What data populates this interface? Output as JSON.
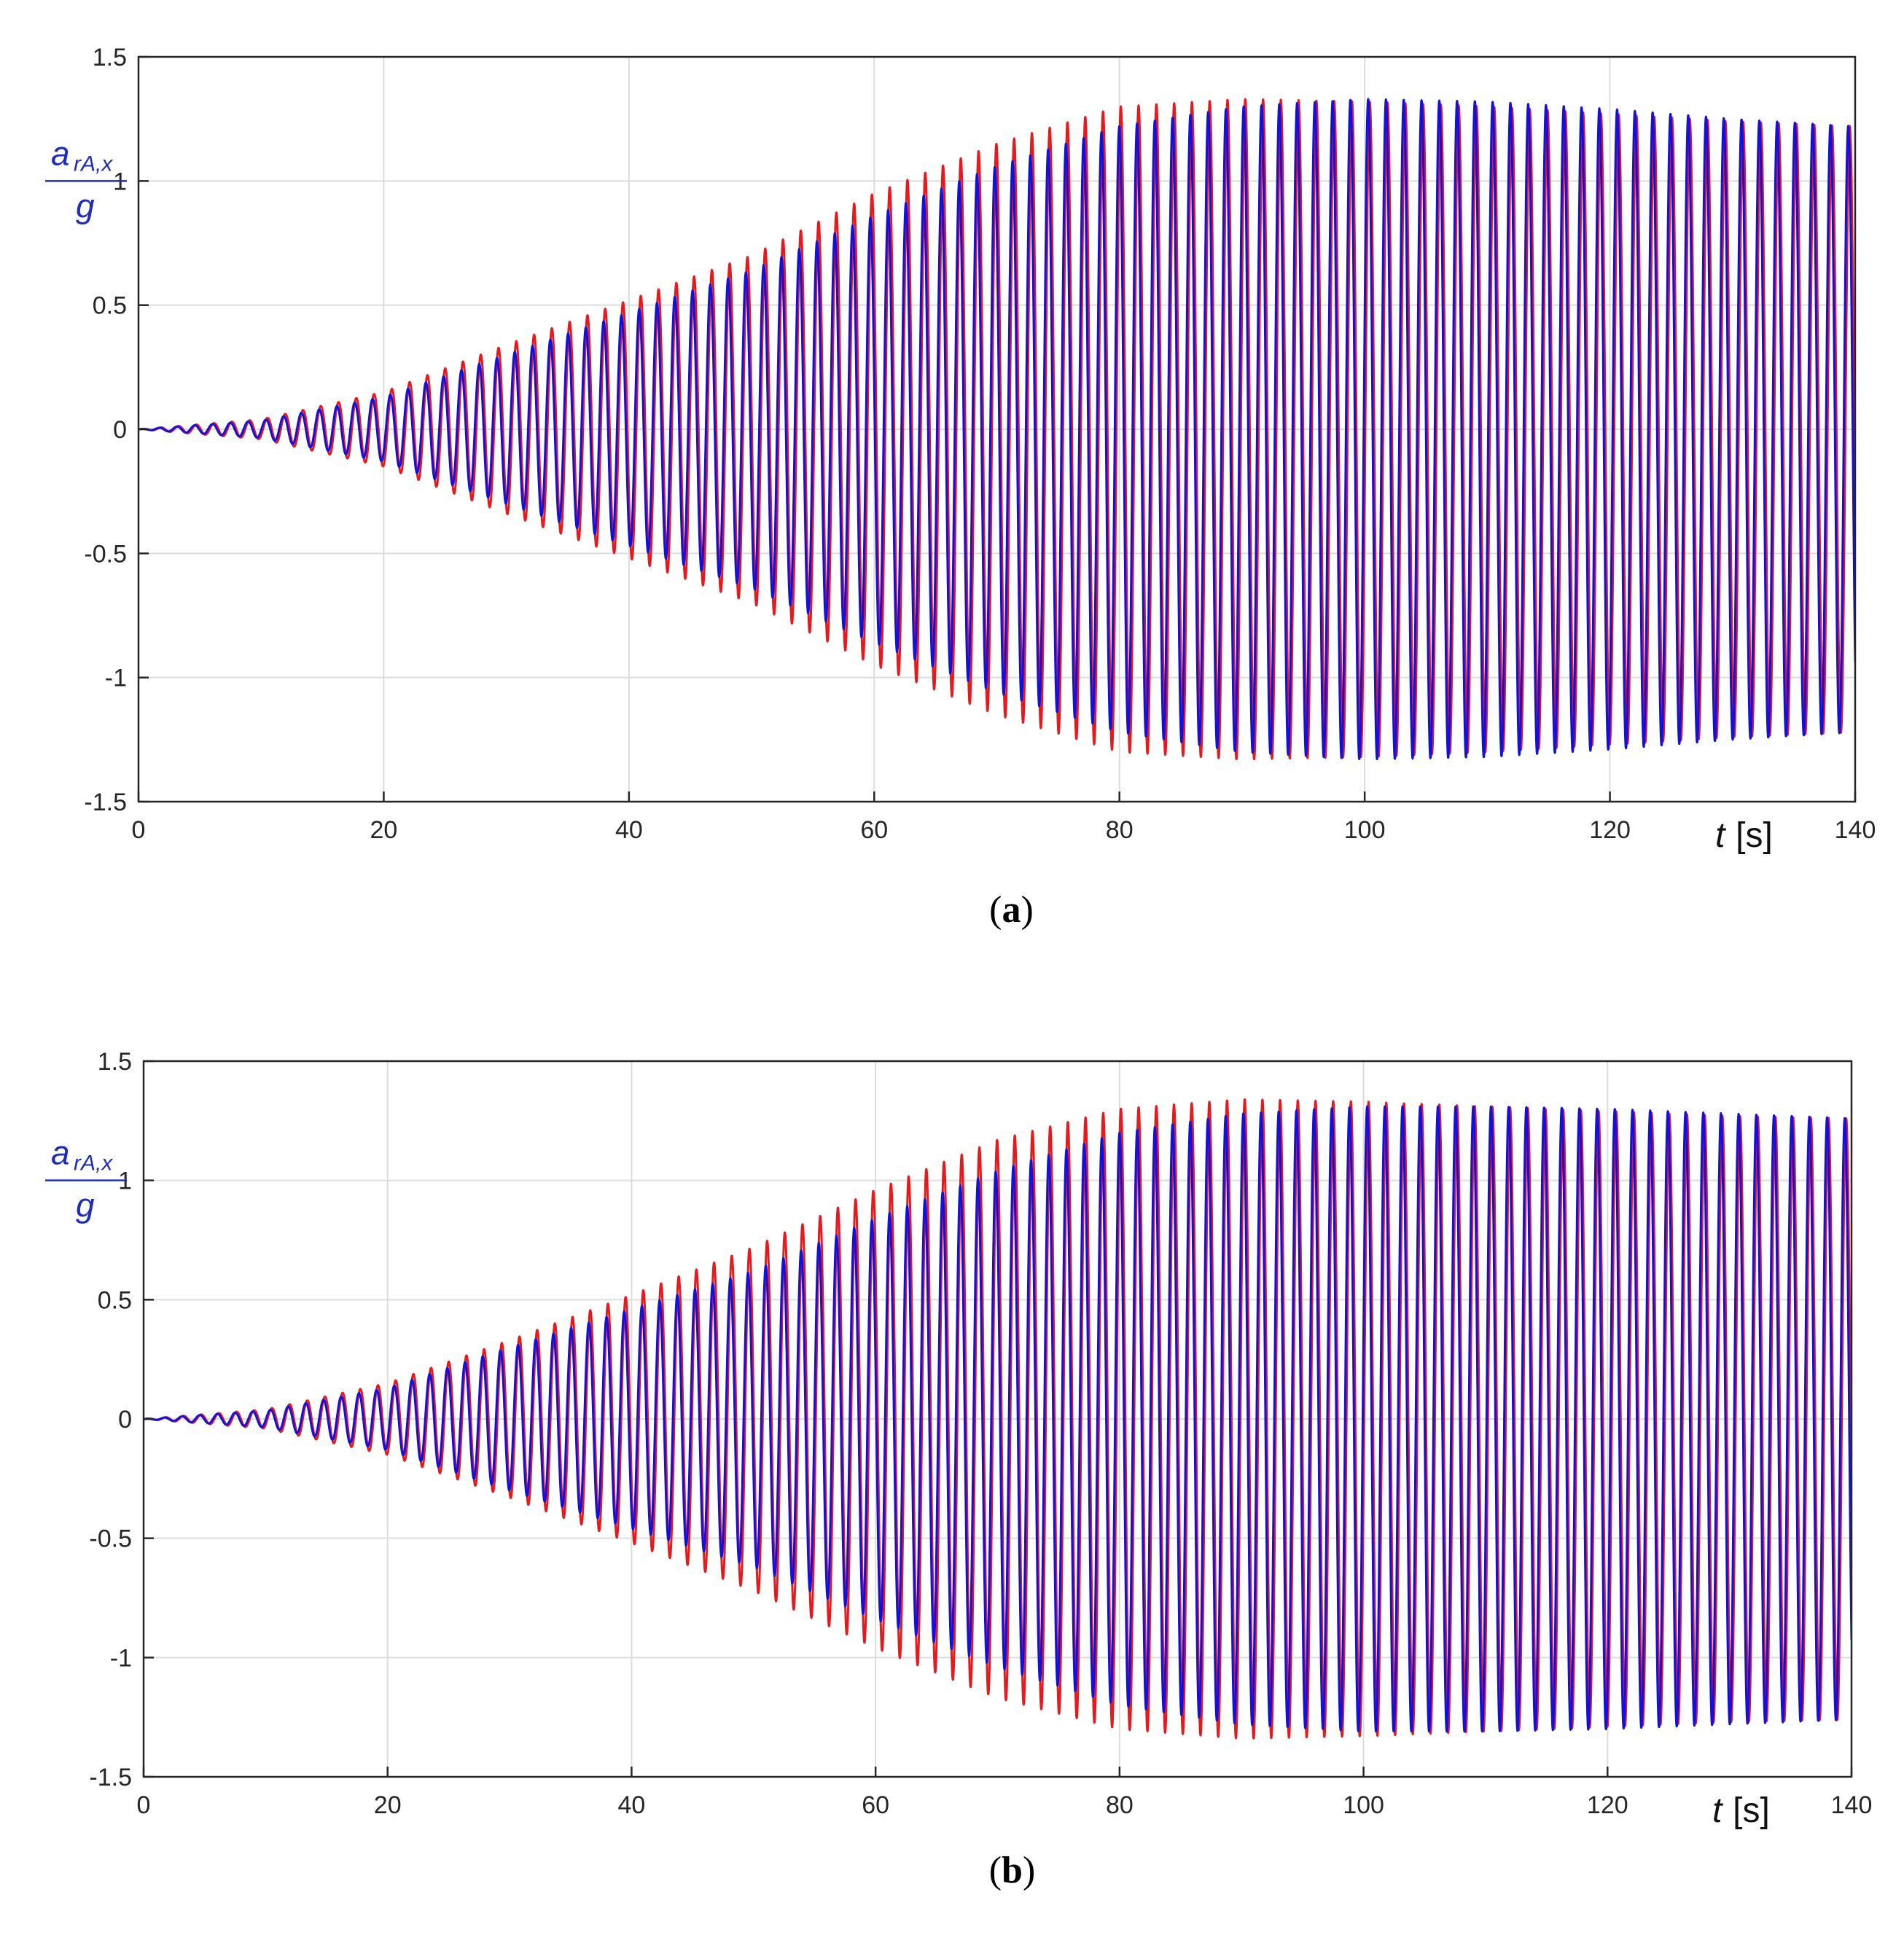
{
  "chart_data": [
    {
      "type": "line",
      "panel": "a",
      "caption": "(a)",
      "caption_letter": "a",
      "ylabel_top": "a",
      "ylabel_sub": "rA,x",
      "ylabel_bottom": "g",
      "xlabel_var": "t",
      "xlabel_unit": "[s]",
      "xlim": [
        0,
        140
      ],
      "ylim": [
        -1.5,
        1.5
      ],
      "x_ticks": [
        "0",
        "20",
        "40",
        "60",
        "80",
        "100",
        "120",
        "140"
      ],
      "y_ticks": [
        "1.5",
        "1",
        "0.5",
        "0",
        "-0.5",
        "-1",
        "-1.5"
      ],
      "x_tick_values": [
        0,
        20,
        40,
        60,
        80,
        100,
        120,
        140
      ],
      "y_tick_values": [
        1.5,
        1,
        0.5,
        0,
        -0.5,
        -1,
        -1.5
      ],
      "grid": true,
      "hidden_x_tick_labels": [
        "1"
      ],
      "series": [
        {
          "name": "red",
          "color": "#e8191d",
          "envelope_t": [
            0,
            10,
            20,
            30,
            40,
            50,
            60,
            70,
            80,
            90,
            100,
            110,
            120,
            130,
            140
          ],
          "envelope_amp": [
            0.0,
            0.04,
            0.15,
            0.34,
            0.52,
            0.7,
            0.95,
            1.15,
            1.3,
            1.33,
            1.32,
            1.3,
            1.27,
            1.24,
            1.22
          ],
          "period_s": 1.45,
          "phase_rad": 0.0
        },
        {
          "name": "blue",
          "color": "#1010e0",
          "envelope_t": [
            0,
            10,
            20,
            30,
            40,
            50,
            60,
            70,
            80,
            90,
            100,
            110,
            120,
            130,
            140
          ],
          "envelope_amp": [
            0.0,
            0.035,
            0.13,
            0.3,
            0.47,
            0.64,
            0.86,
            1.06,
            1.22,
            1.3,
            1.33,
            1.32,
            1.29,
            1.25,
            1.22
          ],
          "period_s": 1.45,
          "phase_rad": 0.55
        }
      ]
    },
    {
      "type": "line",
      "panel": "b",
      "caption": "(b)",
      "caption_letter": "b",
      "ylabel_top": "a",
      "ylabel_sub": "rA,x",
      "ylabel_bottom": "g",
      "xlabel_var": "t",
      "xlabel_unit": "[s]",
      "xlim": [
        0,
        140
      ],
      "ylim": [
        -1.5,
        1.5
      ],
      "x_ticks": [
        "0",
        "20",
        "40",
        "60",
        "80",
        "100",
        "120",
        "140"
      ],
      "y_ticks": [
        "1.5",
        "1",
        "0.5",
        "0",
        "-0.5",
        "-1",
        "-1.5"
      ],
      "x_tick_values": [
        0,
        20,
        40,
        60,
        80,
        100,
        120,
        140
      ],
      "y_tick_values": [
        1.5,
        1,
        0.5,
        0,
        -0.5,
        -1,
        -1.5
      ],
      "grid": true,
      "hidden_x_tick_labels": [
        "1"
      ],
      "series": [
        {
          "name": "red",
          "color": "#e8191d",
          "envelope_t": [
            0,
            10,
            20,
            30,
            40,
            50,
            60,
            70,
            80,
            90,
            100,
            110,
            120,
            130,
            140
          ],
          "envelope_amp": [
            0.0,
            0.04,
            0.15,
            0.33,
            0.52,
            0.72,
            0.96,
            1.17,
            1.3,
            1.34,
            1.33,
            1.31,
            1.29,
            1.27,
            1.26
          ],
          "period_s": 1.45,
          "phase_rad": 0.0
        },
        {
          "name": "blue",
          "color": "#1010e0",
          "envelope_t": [
            0,
            10,
            20,
            30,
            40,
            50,
            60,
            70,
            80,
            90,
            100,
            110,
            120,
            130,
            140
          ],
          "envelope_amp": [
            0.0,
            0.035,
            0.13,
            0.3,
            0.46,
            0.62,
            0.84,
            1.04,
            1.2,
            1.28,
            1.31,
            1.31,
            1.3,
            1.28,
            1.26
          ],
          "period_s": 1.45,
          "phase_rad": 0.5
        }
      ]
    }
  ]
}
